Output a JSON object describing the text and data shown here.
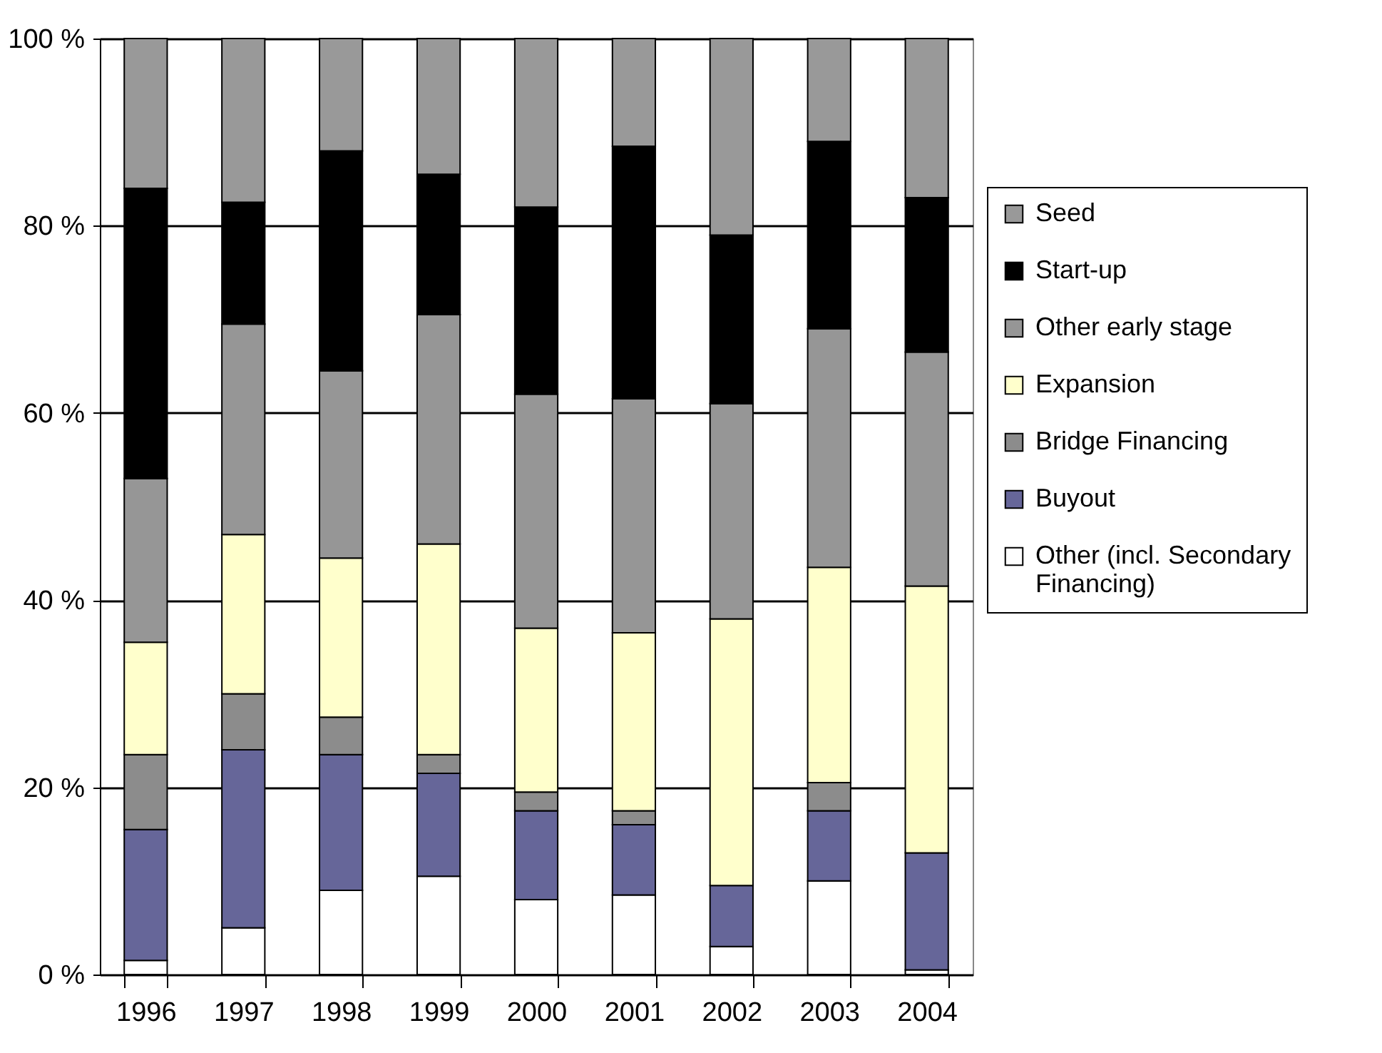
{
  "chart_data": {
    "type": "bar",
    "stacked": true,
    "categories": [
      "1996",
      "1997",
      "1998",
      "1999",
      "2000",
      "2001",
      "2002",
      "2003",
      "2004"
    ],
    "series": [
      {
        "name": "Other (incl. Secondary Financing)",
        "color": "#ffffff",
        "values": [
          1.5,
          5,
          9,
          10.5,
          8,
          8.5,
          3,
          10,
          0.5
        ]
      },
      {
        "name": "Buyout",
        "color": "#666699",
        "values": [
          14,
          19,
          14.5,
          11,
          9.5,
          7.5,
          6.5,
          7.5,
          12.5
        ]
      },
      {
        "name": "Bridge Financing",
        "color": "#8c8c8c",
        "values": [
          8,
          6,
          4,
          2,
          2,
          1.5,
          0,
          3,
          0
        ]
      },
      {
        "name": "Expansion",
        "color": "#ffffcc",
        "values": [
          12,
          17,
          17,
          22.5,
          17.5,
          19,
          28.5,
          23,
          28.5
        ]
      },
      {
        "name": "Other early stage",
        "color": "#969696",
        "values": [
          17.5,
          22.5,
          20,
          24.5,
          25,
          25,
          23,
          25.5,
          25
        ]
      },
      {
        "name": "Start-up",
        "color": "#000000",
        "values": [
          31,
          13,
          23.5,
          15,
          20,
          27,
          18,
          20,
          16.5
        ]
      },
      {
        "name": "Seed",
        "color": "#999999",
        "values": [
          16,
          17.5,
          12,
          14.5,
          18,
          11.5,
          21,
          11,
          17
        ]
      }
    ],
    "ylim": [
      0,
      100
    ],
    "yticks": [
      {
        "value": 0,
        "label": "0 %"
      },
      {
        "value": 20,
        "label": "20 %"
      },
      {
        "value": 40,
        "label": "40 %"
      },
      {
        "value": 60,
        "label": "60 %"
      },
      {
        "value": 80,
        "label": "80 %"
      },
      {
        "value": 100,
        "label": "100 %"
      }
    ],
    "grid": "y",
    "legend": "right"
  }
}
